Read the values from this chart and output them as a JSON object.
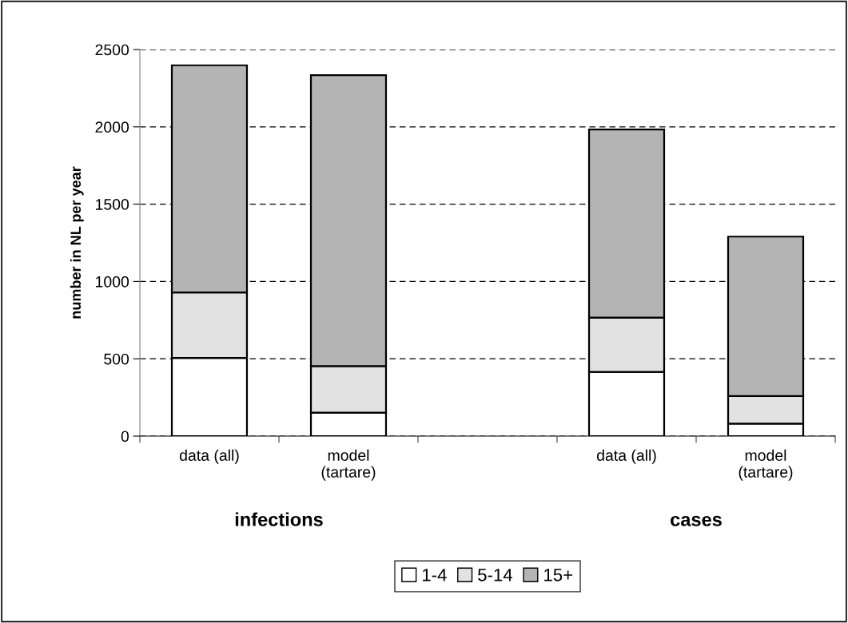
{
  "chart_data": {
    "type": "bar",
    "stacked": true,
    "ylabel": "number in NL per year",
    "categories": [
      "data (all)",
      "model\n(tartare)",
      null,
      "data (all)",
      "model\n(tartare)"
    ],
    "series": [
      {
        "name": "1-4",
        "color": "#ffffff",
        "values": [
          505,
          152,
          null,
          415,
          81
        ]
      },
      {
        "name": "5-14",
        "color": "#e2e2e2",
        "values": [
          424,
          301,
          null,
          351,
          178
        ]
      },
      {
        "name": "15+",
        "color": "#b4b4b4",
        "values": [
          1469,
          1881,
          null,
          1217,
          1031
        ]
      }
    ],
    "annotations": [
      "infections",
      "cases"
    ],
    "ylim": [
      0,
      2500
    ],
    "yticks": [
      0,
      500,
      1000,
      1500,
      2000,
      2500
    ],
    "grid": "y",
    "legend": "bottom"
  }
}
